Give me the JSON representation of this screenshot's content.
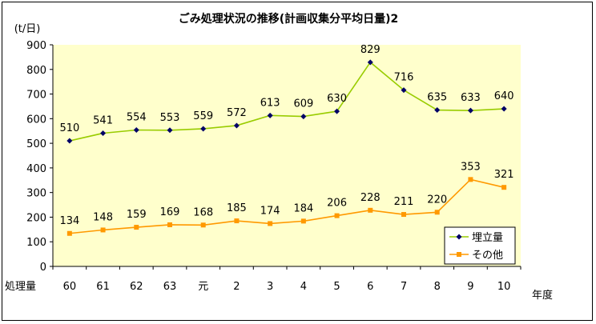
{
  "chart_data": {
    "type": "line",
    "title": "ごみ処理状況の推移(計画収集分平均日量)2",
    "ylabel": "(t/日)",
    "xlabel_left": "処理量",
    "xlabel_right": "年度",
    "ylim": [
      0,
      900
    ],
    "yticks": [
      0,
      100,
      200,
      300,
      400,
      500,
      600,
      700,
      800,
      900
    ],
    "categories": [
      "60",
      "61",
      "62",
      "63",
      "元",
      "2",
      "3",
      "4",
      "5",
      "6",
      "7",
      "8",
      "9",
      "10"
    ],
    "grid": false,
    "legend_position": "bottom-right",
    "plot_background": "#FFFFCC",
    "series": [
      {
        "name": "埋立量",
        "color": "#99CC00",
        "marker": "diamond",
        "marker_color": "#000066",
        "values": [
          510,
          541,
          554,
          553,
          559,
          572,
          613,
          609,
          630,
          829,
          716,
          635,
          633,
          640
        ]
      },
      {
        "name": "その他",
        "color": "#FF9900",
        "marker": "square",
        "marker_color": "#FF9900",
        "values": [
          134,
          148,
          159,
          169,
          168,
          185,
          174,
          184,
          206,
          228,
          211,
          220,
          353,
          321
        ]
      }
    ]
  }
}
